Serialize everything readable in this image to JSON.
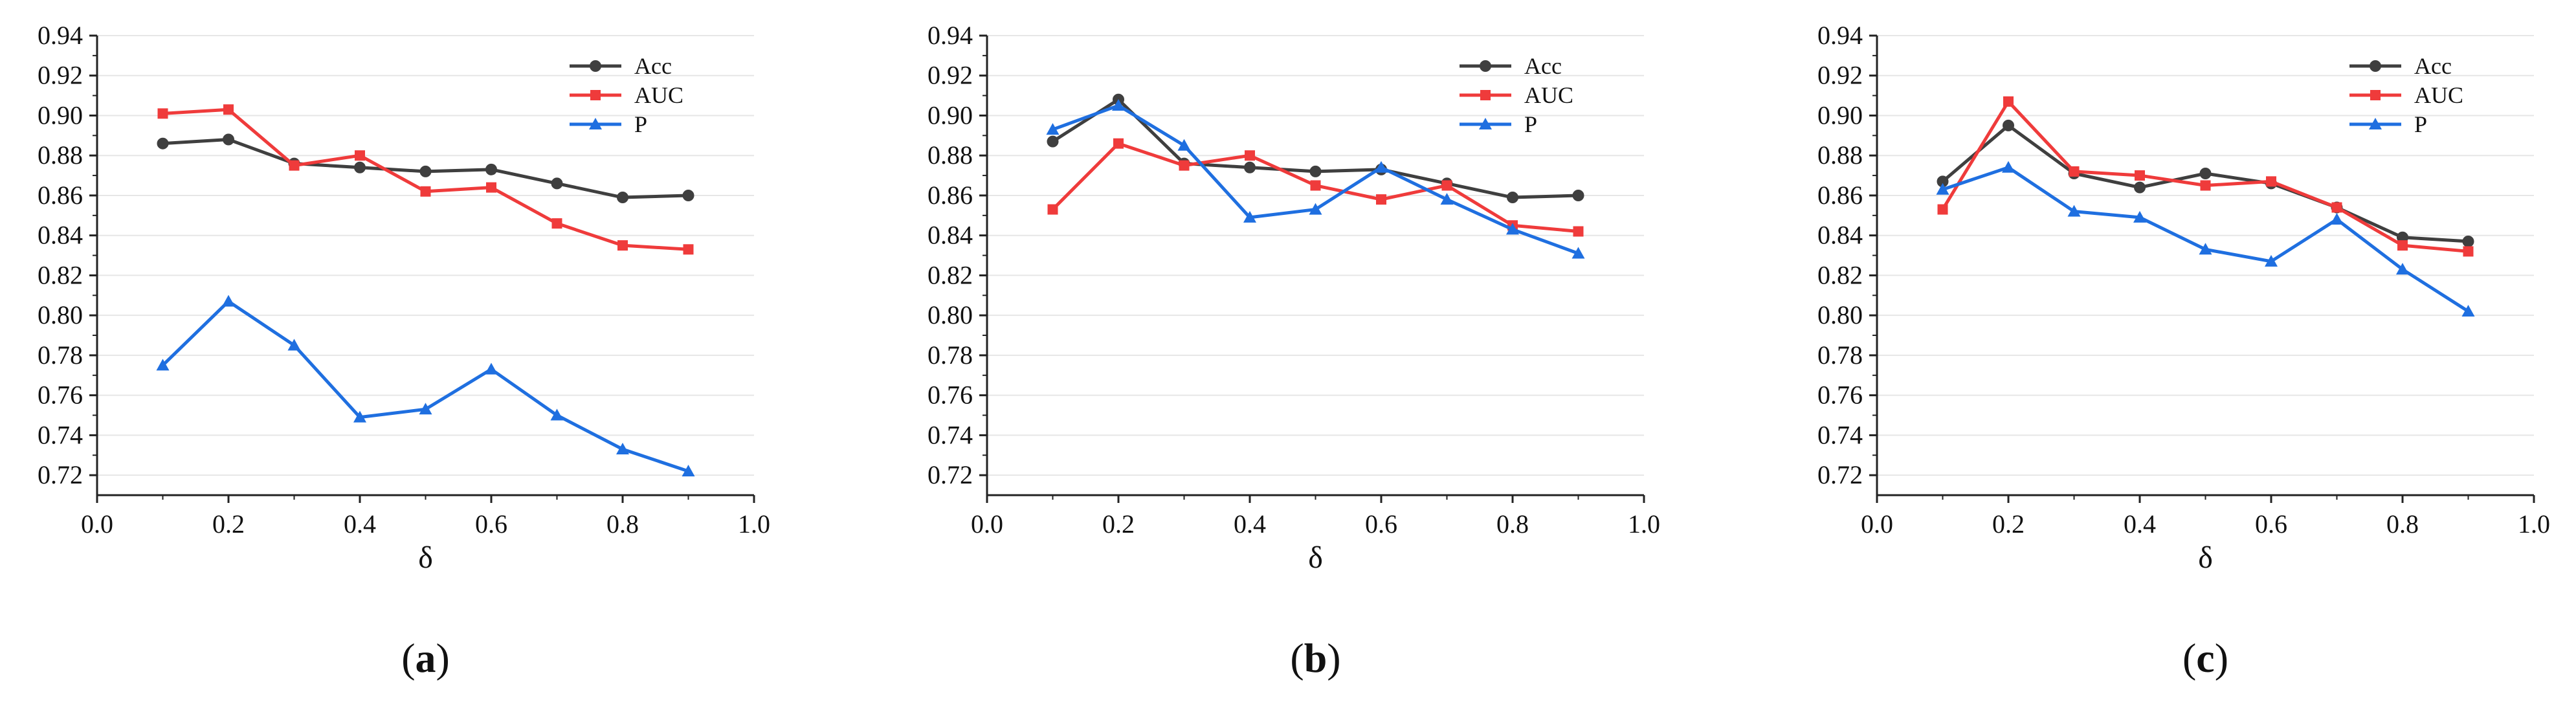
{
  "figure": {
    "colors": {
      "Acc": "#3f3f3f",
      "AUC": "#ef3b3b",
      "P": "#1f6fe0"
    }
  },
  "chart_data": [
    {
      "type": "line",
      "panel_label": "a",
      "xlabel": "δ",
      "ylabel": "",
      "xlim": [
        0.0,
        1.0
      ],
      "ylim": [
        0.71,
        0.94
      ],
      "x_ticks": [
        "0.0",
        "0.2",
        "0.4",
        "0.6",
        "0.8",
        "1.0"
      ],
      "y_ticks": [
        "0.72",
        "0.74",
        "0.76",
        "0.78",
        "0.80",
        "0.82",
        "0.84",
        "0.86",
        "0.88",
        "0.90",
        "0.92",
        "0.94"
      ],
      "legend_position": "top-right",
      "x": [
        0.1,
        0.2,
        0.3,
        0.4,
        0.5,
        0.6,
        0.7,
        0.8,
        0.9
      ],
      "series": [
        {
          "name": "Acc",
          "marker": "circle",
          "values": [
            0.886,
            0.888,
            0.876,
            0.874,
            0.872,
            0.873,
            0.866,
            0.859,
            0.86
          ]
        },
        {
          "name": "AUC",
          "marker": "square",
          "values": [
            0.901,
            0.903,
            0.875,
            0.88,
            0.862,
            0.864,
            0.846,
            0.835,
            0.833
          ]
        },
        {
          "name": "P",
          "marker": "triangle",
          "values": [
            0.775,
            0.807,
            0.785,
            0.749,
            0.753,
            0.773,
            0.75,
            0.733,
            0.722
          ]
        }
      ]
    },
    {
      "type": "line",
      "panel_label": "b",
      "xlabel": "δ",
      "ylabel": "",
      "xlim": [
        0.0,
        1.0
      ],
      "ylim": [
        0.71,
        0.94
      ],
      "x_ticks": [
        "0.0",
        "0.2",
        "0.4",
        "0.6",
        "0.8",
        "1.0"
      ],
      "y_ticks": [
        "0.72",
        "0.74",
        "0.76",
        "0.78",
        "0.80",
        "0.82",
        "0.84",
        "0.86",
        "0.88",
        "0.90",
        "0.92",
        "0.94"
      ],
      "legend_position": "top-right",
      "x": [
        0.1,
        0.2,
        0.3,
        0.4,
        0.5,
        0.6,
        0.7,
        0.8,
        0.9
      ],
      "series": [
        {
          "name": "Acc",
          "marker": "circle",
          "values": [
            0.887,
            0.908,
            0.876,
            0.874,
            0.872,
            0.873,
            0.866,
            0.859,
            0.86
          ]
        },
        {
          "name": "AUC",
          "marker": "square",
          "values": [
            0.853,
            0.886,
            0.875,
            0.88,
            0.865,
            0.858,
            0.865,
            0.845,
            0.842
          ]
        },
        {
          "name": "P",
          "marker": "triangle",
          "values": [
            0.893,
            0.905,
            0.885,
            0.849,
            0.853,
            0.874,
            0.858,
            0.843,
            0.831
          ]
        }
      ]
    },
    {
      "type": "line",
      "panel_label": "c",
      "xlabel": "δ",
      "ylabel": "",
      "xlim": [
        0.0,
        1.0
      ],
      "ylim": [
        0.71,
        0.94
      ],
      "x_ticks": [
        "0.0",
        "0.2",
        "0.4",
        "0.6",
        "0.8",
        "1.0"
      ],
      "y_ticks": [
        "0.72",
        "0.74",
        "0.76",
        "0.78",
        "0.80",
        "0.82",
        "0.84",
        "0.86",
        "0.88",
        "0.90",
        "0.92",
        "0.94"
      ],
      "legend_position": "top-right",
      "x": [
        0.1,
        0.2,
        0.3,
        0.4,
        0.5,
        0.6,
        0.7,
        0.8,
        0.9
      ],
      "series": [
        {
          "name": "Acc",
          "marker": "circle",
          "values": [
            0.867,
            0.895,
            0.871,
            0.864,
            0.871,
            0.866,
            0.854,
            0.839,
            0.837
          ]
        },
        {
          "name": "AUC",
          "marker": "square",
          "values": [
            0.853,
            0.907,
            0.872,
            0.87,
            0.865,
            0.867,
            0.854,
            0.835,
            0.832
          ]
        },
        {
          "name": "P",
          "marker": "triangle",
          "values": [
            0.863,
            0.874,
            0.852,
            0.849,
            0.833,
            0.827,
            0.848,
            0.823,
            0.802
          ]
        }
      ]
    }
  ]
}
